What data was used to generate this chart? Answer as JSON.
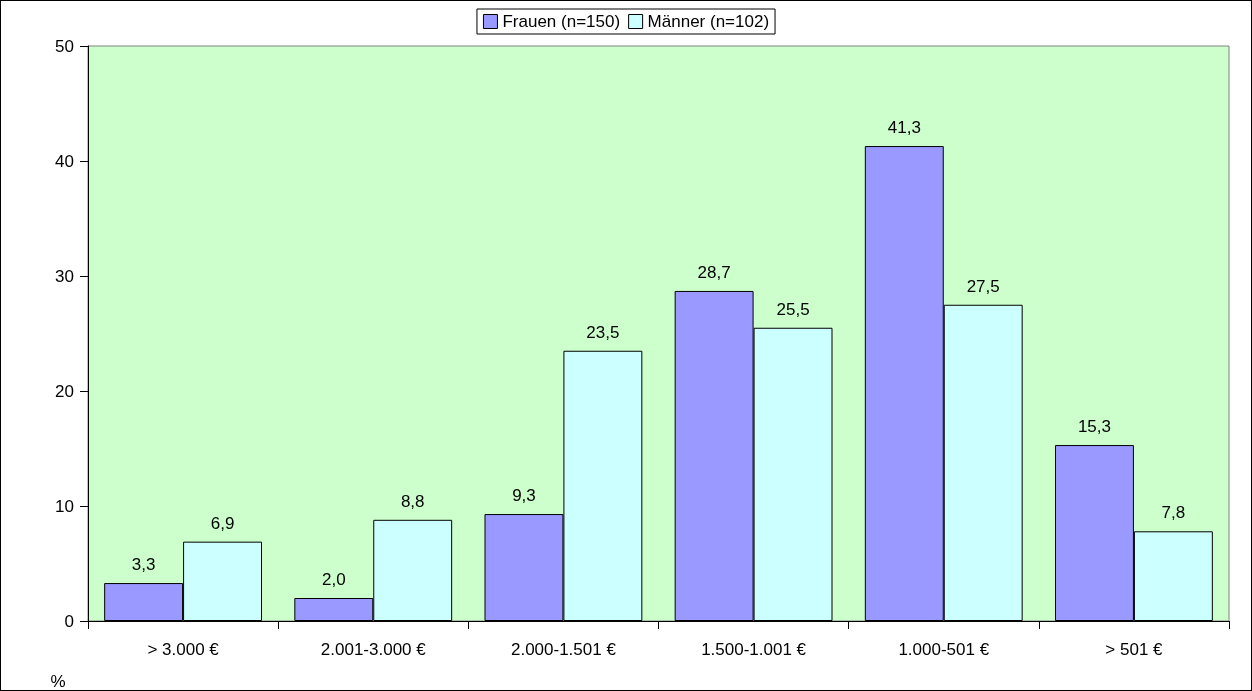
{
  "chart_data": {
    "type": "bar",
    "ylabel": "%",
    "categories": [
      "> 3.000 €",
      "2.001-3.000 €",
      "2.000-1.501 €",
      "1.500-1.001 €",
      "1.000-501 €",
      "> 501 €"
    ],
    "series": [
      {
        "name": "Frauen (n=150)",
        "color": "#9999ff",
        "values": [
          3.3,
          2.0,
          9.3,
          28.7,
          41.3,
          15.3
        ],
        "value_labels": [
          "3,3",
          "2,0",
          "9,3",
          "28,7",
          "41,3",
          "15,3"
        ]
      },
      {
        "name": "Männer (n=102)",
        "color": "#ccffff",
        "values": [
          6.9,
          8.8,
          23.5,
          25.5,
          27.5,
          7.8
        ],
        "value_labels": [
          "6,9",
          "8,8",
          "23,5",
          "25,5",
          "27,5",
          "7,8"
        ]
      }
    ],
    "ylim": [
      0,
      50
    ],
    "yticks": [
      0,
      10,
      20,
      30,
      40,
      50
    ],
    "grid": false,
    "legend": "top"
  }
}
